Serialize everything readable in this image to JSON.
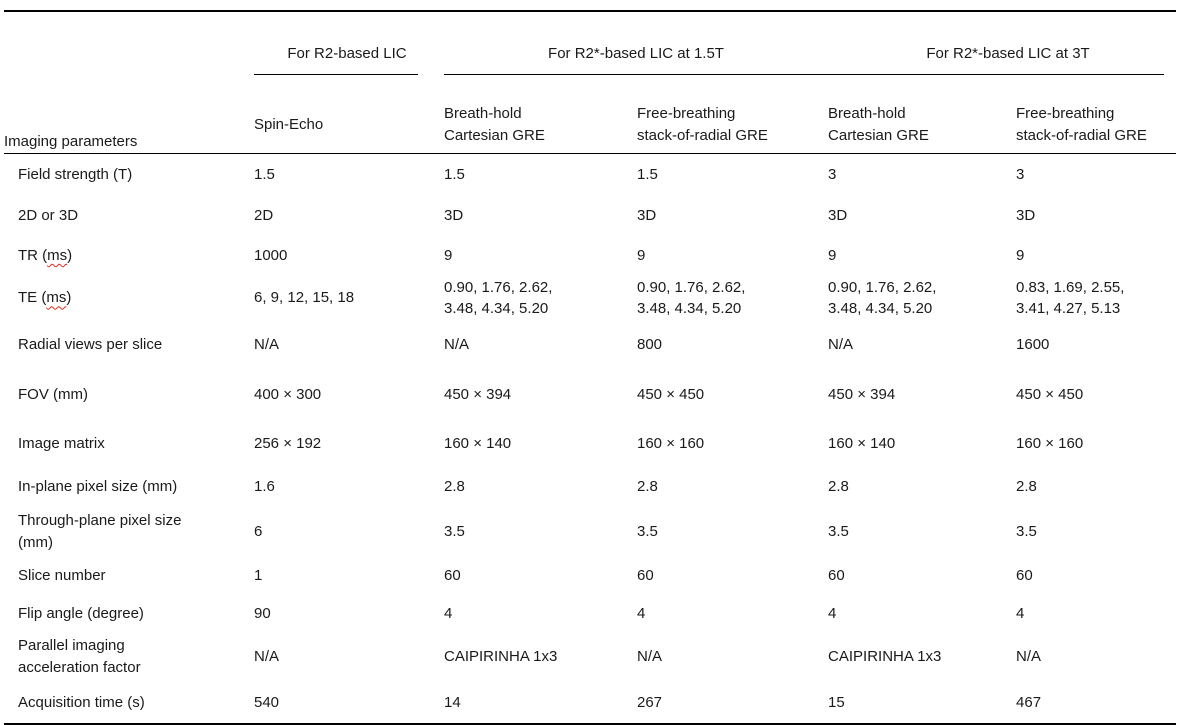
{
  "colors": {
    "text": "#1a1a1a",
    "rule": "#000000",
    "spellcheck_underline": "#e0281c",
    "background": "#ffffff"
  },
  "table": {
    "header": {
      "param_col": "Imaging parameters",
      "groups": [
        {
          "label": "For R2-based LIC",
          "span": 1
        },
        {
          "label": "For R2*-based LIC at 1.5T",
          "span": 2
        },
        {
          "label": "For R2*-based LIC at 3T",
          "span": 2
        }
      ],
      "subheaders": [
        "Spin-Echo",
        "Breath-hold\nCartesian GRE",
        "Free-breathing\nstack-of-radial GRE",
        "Breath-hold\nCartesian GRE",
        "Free-breathing\nstack-of-radial GRE"
      ]
    },
    "rows": [
      {
        "param": "Field strength (T)",
        "values": [
          "1.5",
          "1.5",
          "1.5",
          "3",
          "3"
        ]
      },
      {
        "param": "2D or 3D",
        "values": [
          "2D",
          "3D",
          "3D",
          "3D",
          "3D"
        ]
      },
      {
        "param": "TR (ms)",
        "squiggle": "ms",
        "values": [
          "1000",
          "9",
          "9",
          "9",
          "9"
        ]
      },
      {
        "param": "TE (ms)",
        "squiggle": "ms",
        "values": [
          "6, 9, 12, 15, 18",
          "0.90, 1.76, 2.62,\n3.48, 4.34, 5.20",
          "0.90, 1.76, 2.62,\n3.48, 4.34, 5.20",
          "0.90, 1.76, 2.62,\n3.48, 4.34, 5.20",
          "0.83, 1.69, 2.55,\n3.41, 4.27, 5.13"
        ]
      },
      {
        "param": "Radial views per slice",
        "values": [
          "N/A",
          "N/A",
          "800",
          "N/A",
          "1600"
        ]
      },
      {
        "param": "FOV (mm)",
        "values": [
          "400 × 300",
          "450 × 394",
          "450 × 450",
          "450 × 394",
          "450 × 450"
        ]
      },
      {
        "param": "Image matrix",
        "values": [
          "256 × 192",
          "160 × 140",
          "160 × 160",
          "160 × 140",
          "160 × 160"
        ]
      },
      {
        "param": "In-plane pixel size (mm)",
        "values": [
          "1.6",
          "2.8",
          "2.8",
          "2.8",
          "2.8"
        ]
      },
      {
        "param": "Through-plane pixel size\n(mm)",
        "values": [
          "6",
          "3.5",
          "3.5",
          "3.5",
          "3.5"
        ]
      },
      {
        "param": "Slice number",
        "values": [
          "1",
          "60",
          "60",
          "60",
          "60"
        ]
      },
      {
        "param": "Flip angle (degree)",
        "values": [
          "90",
          "4",
          "4",
          "4",
          "4"
        ]
      },
      {
        "param": "Parallel imaging\nacceleration factor",
        "values": [
          "N/A",
          "CAIPIRINHA 1x3",
          "N/A",
          "CAIPIRINHA 1x3",
          "N/A"
        ]
      },
      {
        "param": "Acquisition time (s)",
        "values": [
          "540",
          "14",
          "267",
          "15",
          "467"
        ]
      }
    ]
  }
}
